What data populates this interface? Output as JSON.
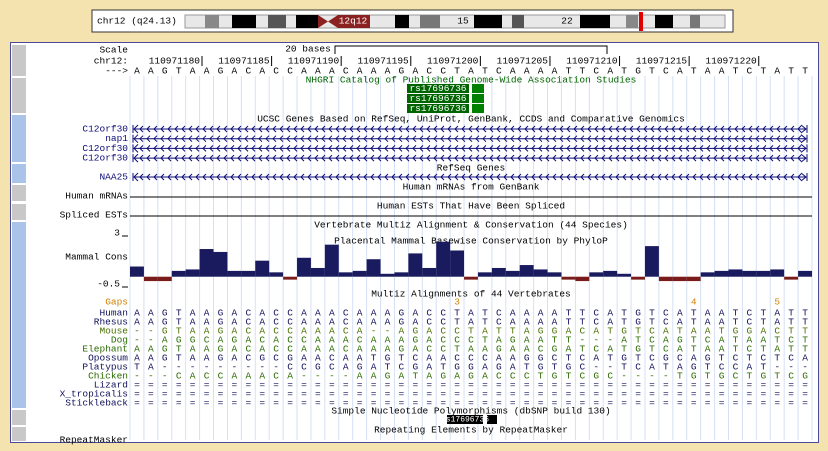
{
  "ideogram": {
    "position": "chr12 (q24.13)",
    "bands": [
      "12q12",
      "15",
      "22"
    ]
  },
  "ruler": {
    "scale_label": "Scale",
    "scale_text": "20 bases",
    "chrom_label": "chr12:",
    "positions": [
      110971180,
      110971185,
      110971190,
      110971195,
      110971200,
      110971205,
      110971210,
      110971215,
      110971220
    ],
    "strand": "--->",
    "sequence": "AAGTAAGACACCAAACAAAGACCTATCAAAATTCATGTCATAATCTATT"
  },
  "tracks": {
    "gwas": {
      "title": "NHGRI Catalog of Published Genome-Wide Association Studies",
      "items": [
        "rs17696736",
        "rs17696736",
        "rs17696736"
      ]
    },
    "ucsc_genes": {
      "title": "UCSC Genes Based on RefSeq, UniProt, GenBank, CCDS and Comparative Genomics",
      "genes": [
        "C12orf30",
        "nap1",
        "C12orf30",
        "C12orf30"
      ]
    },
    "refseq": {
      "title": "RefSeq Genes",
      "genes": [
        "NAA25"
      ]
    },
    "mrna": {
      "title": "Human mRNAs from GenBank",
      "label": "Human mRNAs"
    },
    "est": {
      "title": "Human ESTs That Have Been Spliced",
      "label": "Spliced ESTs"
    },
    "conservation": {
      "title": "Vertebrate Multiz Alignment & Conservation (44 Species)",
      "subtitle": "Placental Mammal Basewise Conservation by PhyloP",
      "label": "Mammal Cons",
      "ylim": [
        -0.5,
        3
      ],
      "yticks": [
        3,
        -0.5
      ],
      "values": [
        0.7,
        -0.3,
        -0.3,
        0.4,
        0.5,
        1.9,
        1.7,
        0.4,
        0.4,
        1.1,
        0.3,
        -0.2,
        1.3,
        0.6,
        2.2,
        0.3,
        0.4,
        1.2,
        0.2,
        0.3,
        1.6,
        0.6,
        2.4,
        1.8,
        -0.2,
        0.3,
        0.6,
        0.4,
        0.8,
        0.5,
        0.3,
        -0.2,
        -0.3,
        0.3,
        0.4,
        0.2,
        -0.2,
        2.1,
        -0.3,
        -0.3,
        -0.3,
        0.3,
        0.4,
        0.5,
        0.4,
        0.4,
        0.5,
        -0.2,
        0.4
      ]
    },
    "multiz": {
      "title": "Multiz Alignments of 44 Vertebrates",
      "gaps_label": "Gaps",
      "gap_labels": [
        null,
        null,
        null,
        null,
        null,
        null,
        null,
        null,
        null,
        null,
        null,
        null,
        null,
        null,
        null,
        null,
        null,
        null,
        null,
        null,
        null,
        null,
        null,
        3,
        null,
        null,
        null,
        null,
        null,
        null,
        null,
        null,
        null,
        null,
        null,
        null,
        null,
        null,
        null,
        null,
        4,
        null,
        null,
        null,
        null,
        null,
        5,
        null,
        null
      ],
      "species": [
        {
          "name": "Human",
          "color": "#10105a",
          "sequence": "AAGTAAGACACCAAACAAAGACCTATCAAAATTCATGTCATAATCTATT"
        },
        {
          "name": "Rhesus",
          "color": "#10105a",
          "sequence": "AAGTAAGACACCAAACAAAGACCTATCAAAATTCATGTCATAATCTATT"
        },
        {
          "name": "Mouse",
          "color": "#4a7000",
          "sequence": "--GTAAGACACCAAACA--AGACCTATTAGGACATGTCATAATGGACTT"
        },
        {
          "name": "Dog",
          "color": "#2a6a00",
          "sequence": "--AGGCAGACACCAAACAAAGACCCTAGAATT---ATCAGTCATAATCT"
        },
        {
          "name": "Elephant",
          "color": "#2a6a00",
          "sequence": "AAGTAAGACACCAAACAAAGACCTAAGAACGATCATGTCATAATCTATT"
        },
        {
          "name": "Opossum",
          "color": "#10105a",
          "sequence": "AAGTAAGACGCGAACAATGTCAACCCAAGGCTCATGTCGCAGTCTCTCA"
        },
        {
          "name": "Platypus",
          "color": "#10105a",
          "sequence": "TA---------CCGCAGATCGATGGAGATGTGC--TCATAGTCCAT---"
        },
        {
          "name": "Chicken",
          "color": "#2a6a00",
          "sequence": "---CACCAAACA----AAGATAGAGACCCTGTCGC----TGTGCTGTCG"
        },
        {
          "name": "Lizard",
          "color": "#10105a",
          "sequence": "================================================="
        },
        {
          "name": "X_tropicalis",
          "color": "#10105a",
          "sequence": "================================================="
        },
        {
          "name": "Stickleback",
          "color": "#10105a",
          "sequence": "================================================="
        }
      ]
    },
    "snp": {
      "title": "Simple Nucleotide Polymorphisms (dbSNP build 130)",
      "items": [
        "rs17696736"
      ]
    },
    "repeatmasker": {
      "title": "Repeating Elements by RepeatMasker",
      "label": "RepeatMasker"
    }
  }
}
